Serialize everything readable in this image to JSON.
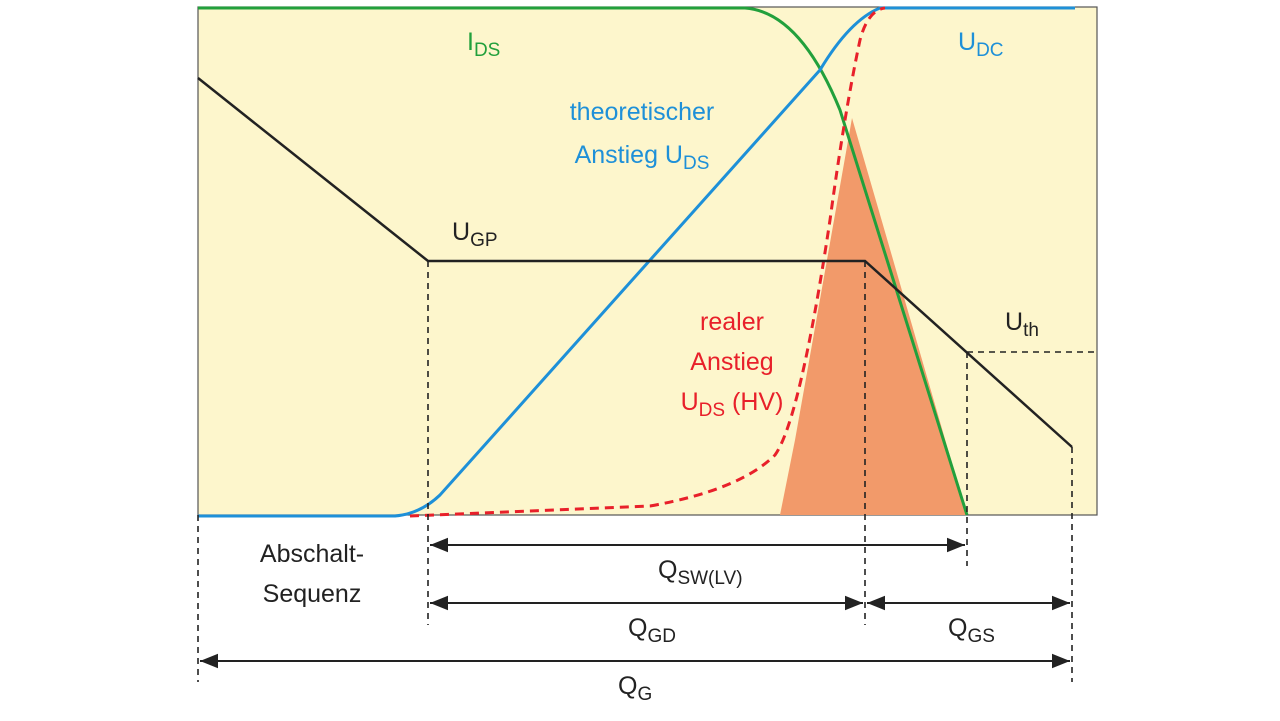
{
  "labels": {
    "ids": {
      "main": "I",
      "sub": "DS"
    },
    "udc": {
      "main": "U",
      "sub": "DC"
    },
    "theoretical": {
      "line1": "theoretischer",
      "line2": "Anstieg U",
      "sub": "DS"
    },
    "ugp": {
      "main": "U",
      "sub": "GP"
    },
    "real": {
      "line1": "realer",
      "line2": "Anstieg",
      "line3_main": "U",
      "line3_sub": "DS",
      "line3_rest": " (HV)"
    },
    "uth": {
      "main": "U",
      "sub": "th"
    },
    "sequence": {
      "line1": "Abschalt-",
      "line2": "Sequenz"
    },
    "qsw": {
      "main": "Q",
      "sub": "SW(LV)"
    },
    "qgd": {
      "main": "Q",
      "sub": "GD"
    },
    "qgs": {
      "main": "Q",
      "sub": "GS"
    },
    "qg": {
      "main": "Q",
      "sub": "G"
    }
  }
}
